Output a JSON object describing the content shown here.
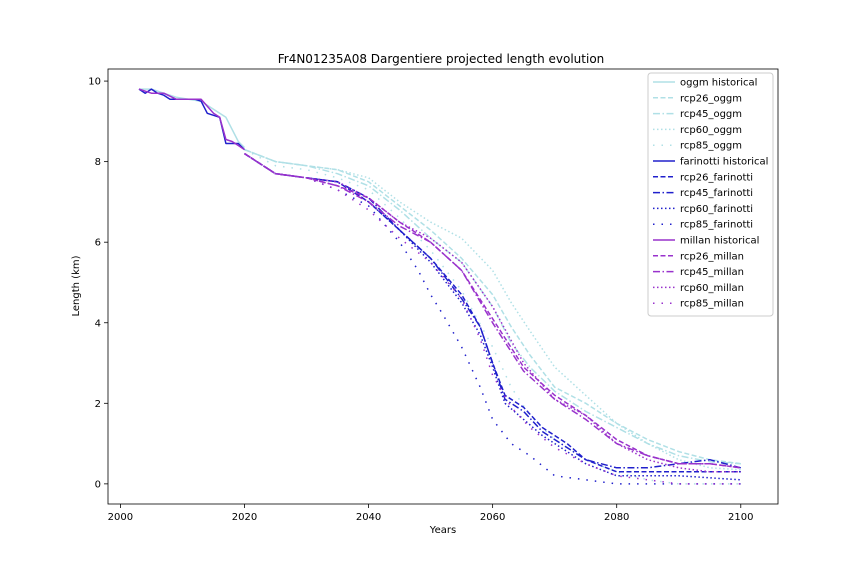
{
  "chart_data": {
    "type": "line",
    "title": "Fr4N01235A08 Dargentiere projected length evolution",
    "xlabel": "Years",
    "ylabel": "Length (km)",
    "xlim": [
      1998,
      2106
    ],
    "ylim": [
      -0.5,
      10.3
    ],
    "xticks": [
      2000,
      2020,
      2040,
      2060,
      2080,
      2100
    ],
    "yticks": [
      0,
      2,
      4,
      6,
      8,
      10
    ],
    "grid": false,
    "legend_position": "top-right",
    "series": [
      {
        "name": "oggm historical",
        "color": "#b0e0e6",
        "dash": "solid",
        "x": [
          2003,
          2005,
          2007,
          2009,
          2011,
          2013,
          2015,
          2017,
          2019,
          2020
        ],
        "y": [
          9.8,
          9.8,
          9.7,
          9.6,
          9.55,
          9.5,
          9.3,
          9.1,
          8.5,
          8.35
        ]
      },
      {
        "name": "rcp26_oggm",
        "color": "#b0e0e6",
        "dash": "dashed",
        "x": [
          2020,
          2025,
          2030,
          2035,
          2040,
          2045,
          2050,
          2055,
          2060,
          2063,
          2066,
          2070,
          2075,
          2080,
          2085,
          2090,
          2095,
          2100
        ],
        "y": [
          8.3,
          8.0,
          7.9,
          7.8,
          7.5,
          6.9,
          6.3,
          5.6,
          4.7,
          3.9,
          3.2,
          2.4,
          2.0,
          1.5,
          1.1,
          0.8,
          0.6,
          0.5
        ]
      },
      {
        "name": "rcp45_oggm",
        "color": "#b0e0e6",
        "dash": "dashdot",
        "x": [
          2020,
          2025,
          2030,
          2035,
          2040,
          2045,
          2050,
          2055,
          2060,
          2063,
          2066,
          2070,
          2075,
          2080,
          2085,
          2090,
          2095,
          2100
        ],
        "y": [
          8.3,
          8.0,
          7.9,
          7.7,
          7.4,
          6.8,
          6.1,
          5.5,
          4.4,
          3.5,
          2.9,
          2.3,
          1.8,
          1.4,
          1.0,
          0.7,
          0.55,
          0.5
        ]
      },
      {
        "name": "rcp60_oggm",
        "color": "#b0e0e6",
        "dash": "dotted",
        "x": [
          2020,
          2025,
          2030,
          2035,
          2040,
          2045,
          2050,
          2055,
          2060,
          2063,
          2066,
          2070,
          2075,
          2080,
          2085,
          2090,
          2095,
          2100
        ],
        "y": [
          8.3,
          8.0,
          7.9,
          7.8,
          7.6,
          7.0,
          6.5,
          6.1,
          5.3,
          4.5,
          3.8,
          2.9,
          2.2,
          1.5,
          1.0,
          0.6,
          0.4,
          0.35
        ]
      },
      {
        "name": "rcp85_oggm",
        "color": "#b0e0e6",
        "dash": "loosedot",
        "x": [
          2020,
          2025,
          2030,
          2035,
          2040,
          2045,
          2050,
          2055,
          2060,
          2063,
          2066,
          2070,
          2075,
          2080,
          2085,
          2090,
          2095,
          2100
        ],
        "y": [
          8.3,
          7.9,
          7.8,
          7.6,
          7.3,
          6.6,
          5.8,
          4.8,
          3.4,
          2.4,
          1.7,
          1.1,
          0.6,
          0.3,
          0.1,
          0.0,
          0.0,
          0.0
        ]
      },
      {
        "name": "farinotti historical",
        "color": "#2020cc",
        "dash": "solid",
        "x": [
          2003,
          2004,
          2005,
          2006,
          2007,
          2008,
          2010,
          2012,
          2013,
          2014,
          2016,
          2017,
          2019,
          2020
        ],
        "y": [
          9.8,
          9.7,
          9.8,
          9.7,
          9.65,
          9.55,
          9.55,
          9.55,
          9.5,
          9.2,
          9.1,
          8.45,
          8.45,
          8.3
        ]
      },
      {
        "name": "rcp26_farinotti",
        "color": "#2020cc",
        "dash": "dashed",
        "x": [
          2020,
          2025,
          2030,
          2035,
          2040,
          2045,
          2050,
          2055,
          2058,
          2060,
          2062,
          2065,
          2068,
          2072,
          2075,
          2080,
          2085,
          2090,
          2095,
          2100
        ],
        "y": [
          8.2,
          7.7,
          7.6,
          7.5,
          7.0,
          6.3,
          5.6,
          4.7,
          3.9,
          3.0,
          2.2,
          1.9,
          1.4,
          1.0,
          0.6,
          0.3,
          0.3,
          0.3,
          0.3,
          0.3
        ]
      },
      {
        "name": "rcp45_farinotti",
        "color": "#2020cc",
        "dash": "dashdot",
        "x": [
          2020,
          2025,
          2030,
          2035,
          2040,
          2045,
          2050,
          2055,
          2058,
          2060,
          2062,
          2065,
          2068,
          2072,
          2075,
          2080,
          2085,
          2090,
          2095,
          2100
        ],
        "y": [
          8.2,
          7.7,
          7.6,
          7.5,
          7.1,
          6.3,
          5.6,
          4.6,
          3.9,
          3.0,
          2.1,
          1.8,
          1.3,
          0.9,
          0.6,
          0.4,
          0.4,
          0.5,
          0.6,
          0.4
        ]
      },
      {
        "name": "rcp60_farinotti",
        "color": "#2020cc",
        "dash": "dotted",
        "x": [
          2020,
          2025,
          2030,
          2035,
          2040,
          2045,
          2050,
          2055,
          2058,
          2060,
          2062,
          2065,
          2068,
          2072,
          2075,
          2080,
          2085,
          2090,
          2095,
          2100
        ],
        "y": [
          8.2,
          7.7,
          7.6,
          7.5,
          7.0,
          6.3,
          5.5,
          4.5,
          3.7,
          2.9,
          2.0,
          1.6,
          1.2,
          0.8,
          0.5,
          0.2,
          0.2,
          0.2,
          0.15,
          0.1
        ]
      },
      {
        "name": "rcp85_farinotti",
        "color": "#2020cc",
        "dash": "loosedot",
        "x": [
          2020,
          2025,
          2030,
          2035,
          2040,
          2045,
          2048,
          2050,
          2052,
          2055,
          2058,
          2060,
          2063,
          2066,
          2070,
          2075,
          2080,
          2085,
          2090,
          2095,
          2100
        ],
        "y": [
          8.2,
          7.7,
          7.6,
          7.3,
          6.9,
          6.0,
          5.3,
          4.7,
          4.2,
          3.4,
          2.4,
          1.6,
          1.0,
          0.7,
          0.2,
          0.1,
          0.0,
          0.0,
          0.0,
          0.0,
          0.0
        ]
      },
      {
        "name": "millan historical",
        "color": "#9932cc",
        "dash": "solid",
        "x": [
          2003,
          2005,
          2007,
          2009,
          2011,
          2013,
          2015,
          2016,
          2017,
          2018,
          2019,
          2020
        ],
        "y": [
          9.8,
          9.7,
          9.7,
          9.55,
          9.55,
          9.55,
          9.2,
          9.1,
          8.55,
          8.5,
          8.4,
          8.3
        ]
      },
      {
        "name": "rcp26_millan",
        "color": "#9932cc",
        "dash": "dashed",
        "x": [
          2020,
          2025,
          2030,
          2035,
          2040,
          2045,
          2050,
          2055,
          2060,
          2065,
          2070,
          2075,
          2080,
          2085,
          2090,
          2095,
          2100
        ],
        "y": [
          8.2,
          7.7,
          7.6,
          7.4,
          7.1,
          6.5,
          6.0,
          5.3,
          4.1,
          2.9,
          2.2,
          1.7,
          1.1,
          0.7,
          0.5,
          0.5,
          0.4
        ]
      },
      {
        "name": "rcp45_millan",
        "color": "#9932cc",
        "dash": "dashdot",
        "x": [
          2020,
          2025,
          2030,
          2035,
          2040,
          2045,
          2050,
          2055,
          2060,
          2065,
          2070,
          2075,
          2080,
          2085,
          2090,
          2095,
          2100
        ],
        "y": [
          8.2,
          7.7,
          7.6,
          7.4,
          7.0,
          6.4,
          6.0,
          5.3,
          4.0,
          2.8,
          2.1,
          1.6,
          1.0,
          0.7,
          0.5,
          0.5,
          0.4
        ]
      },
      {
        "name": "rcp60_millan",
        "color": "#9932cc",
        "dash": "dotted",
        "x": [
          2020,
          2025,
          2030,
          2035,
          2040,
          2045,
          2050,
          2055,
          2060,
          2065,
          2070,
          2075,
          2080,
          2085,
          2090,
          2095,
          2100
        ],
        "y": [
          8.2,
          7.7,
          7.6,
          7.5,
          7.1,
          6.5,
          6.1,
          5.5,
          4.4,
          3.0,
          2.1,
          1.7,
          1.0,
          0.6,
          0.4,
          0.3,
          0.3
        ]
      },
      {
        "name": "rcp85_millan",
        "color": "#9932cc",
        "dash": "loosedot",
        "x": [
          2020,
          2025,
          2030,
          2035,
          2040,
          2045,
          2050,
          2055,
          2058,
          2060,
          2063,
          2066,
          2070,
          2075,
          2080,
          2085,
          2090,
          2095,
          2100
        ],
        "y": [
          8.2,
          7.7,
          7.6,
          7.3,
          6.8,
          6.1,
          5.5,
          4.6,
          3.6,
          2.7,
          1.9,
          1.4,
          0.9,
          0.5,
          0.2,
          0.1,
          0.0,
          0.0,
          0.0
        ]
      }
    ]
  }
}
